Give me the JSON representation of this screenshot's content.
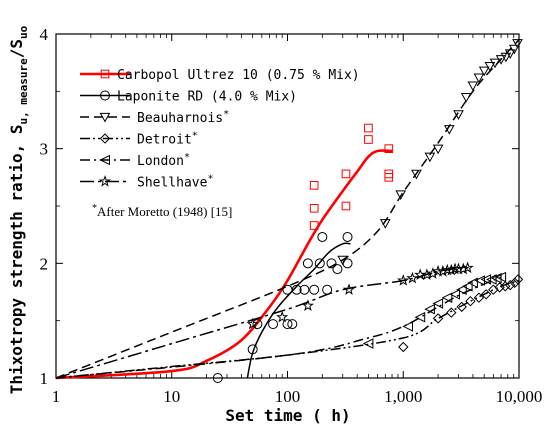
{
  "chart_data": {
    "type": "line",
    "x_scale": "log",
    "xlabel": "Set time ( h)",
    "ylabel_main": "Thixotropy strength ratio, S",
    "ylabel_sub1": "u, measure",
    "ylabel_slash": "/S",
    "ylabel_sub2": "uo",
    "xlim": [
      1,
      10000
    ],
    "ylim": [
      1,
      4
    ],
    "x_ticks": [
      1,
      10,
      100,
      1000,
      10000
    ],
    "x_tick_labels": [
      "1",
      "10",
      "100",
      "1,000",
      "10,000"
    ],
    "y_ticks": [
      1,
      2,
      3,
      4
    ],
    "y_tick_labels": [
      "1",
      "2",
      "3",
      "4"
    ],
    "grid": false,
    "legend_position": "top-left",
    "note": "After Moretto (1948) [15]",
    "note_marker": "*",
    "series": [
      {
        "name": "Carbopol Ultrez 10 (0.75 % Mix)",
        "color": "#ff0000",
        "line": "solid",
        "marker": "square",
        "curve": [
          [
            1,
            1.0
          ],
          [
            10,
            1.06
          ],
          [
            20,
            1.15
          ],
          [
            40,
            1.33
          ],
          [
            70,
            1.62
          ],
          [
            100,
            1.85
          ],
          [
            150,
            2.17
          ],
          [
            200,
            2.38
          ],
          [
            300,
            2.63
          ],
          [
            400,
            2.8
          ],
          [
            500,
            2.93
          ],
          [
            600,
            2.98
          ],
          [
            800,
            2.98
          ]
        ],
        "points": [
          [
            170,
            2.68
          ],
          [
            170,
            2.48
          ],
          [
            170,
            2.33
          ],
          [
            320,
            2.78
          ],
          [
            320,
            2.5
          ],
          [
            500,
            3.18
          ],
          [
            500,
            3.08
          ],
          [
            750,
            3.0
          ],
          [
            750,
            2.78
          ],
          [
            750,
            2.75
          ]
        ]
      },
      {
        "name": "Laponite RD (4.0 % Mix)",
        "color": "#000000",
        "line": "solid",
        "marker": "circle",
        "curve": [
          [
            45,
            1.0
          ],
          [
            50,
            1.22
          ],
          [
            60,
            1.4
          ],
          [
            80,
            1.6
          ],
          [
            120,
            1.8
          ],
          [
            170,
            1.95
          ],
          [
            230,
            2.1
          ],
          [
            300,
            2.17
          ],
          [
            350,
            2.17
          ]
        ],
        "points": [
          [
            25,
            1.0
          ],
          [
            50,
            1.25
          ],
          [
            55,
            1.47
          ],
          [
            75,
            1.47
          ],
          [
            100,
            1.47
          ],
          [
            100,
            1.77
          ],
          [
            110,
            1.47
          ],
          [
            120,
            1.77
          ],
          [
            140,
            1.77
          ],
          [
            150,
            2.0
          ],
          [
            170,
            1.77
          ],
          [
            190,
            2.0
          ],
          [
            200,
            2.23
          ],
          [
            220,
            1.77
          ],
          [
            240,
            2.0
          ],
          [
            270,
            1.95
          ],
          [
            330,
            2.0
          ],
          [
            330,
            2.23
          ]
        ]
      },
      {
        "name": "Beauharnois",
        "color": "#000000",
        "line": "dashed",
        "marker": "triangle-down",
        "curve": [
          [
            1,
            1.0
          ],
          [
            10,
            1.4
          ],
          [
            100,
            1.8
          ],
          [
            300,
            2.03
          ],
          [
            600,
            2.28
          ],
          [
            1000,
            2.62
          ],
          [
            2000,
            3.05
          ],
          [
            4000,
            3.5
          ],
          [
            7000,
            3.78
          ],
          [
            10000,
            3.95
          ]
        ],
        "points": [
          [
            300,
            2.03
          ],
          [
            700,
            2.35
          ],
          [
            950,
            2.6
          ],
          [
            1300,
            2.78
          ],
          [
            1700,
            2.93
          ],
          [
            2000,
            3.0
          ],
          [
            2500,
            3.17
          ],
          [
            3000,
            3.3
          ],
          [
            3500,
            3.45
          ],
          [
            4000,
            3.55
          ],
          [
            4500,
            3.62
          ],
          [
            5000,
            3.68
          ],
          [
            5600,
            3.72
          ],
          [
            6200,
            3.75
          ],
          [
            7000,
            3.78
          ],
          [
            7700,
            3.8
          ],
          [
            8400,
            3.83
          ],
          [
            9100,
            3.87
          ],
          [
            9700,
            3.92
          ]
        ]
      },
      {
        "name": "Detroit",
        "color": "#000000",
        "line": "dash-dot-dot",
        "marker": "diamond",
        "curve": [
          [
            1,
            1.0
          ],
          [
            10,
            1.1
          ],
          [
            100,
            1.2
          ],
          [
            1000,
            1.35
          ],
          [
            2000,
            1.52
          ],
          [
            4000,
            1.68
          ],
          [
            7000,
            1.8
          ],
          [
            10000,
            1.85
          ]
        ],
        "points": [
          [
            1000,
            1.27
          ],
          [
            2000,
            1.52
          ],
          [
            2600,
            1.57
          ],
          [
            3200,
            1.62
          ],
          [
            3800,
            1.67
          ],
          [
            4500,
            1.7
          ],
          [
            5200,
            1.73
          ],
          [
            6000,
            1.77
          ],
          [
            6800,
            1.79
          ],
          [
            7600,
            1.8
          ],
          [
            8400,
            1.81
          ],
          [
            9200,
            1.83
          ],
          [
            9800,
            1.86
          ]
        ]
      },
      {
        "name": "London",
        "color": "#000000",
        "line": "dash-dot",
        "marker": "triangle-left",
        "curve": [
          [
            1,
            1.0
          ],
          [
            100,
            1.2
          ],
          [
            500,
            1.35
          ],
          [
            1000,
            1.45
          ],
          [
            2000,
            1.62
          ],
          [
            3000,
            1.72
          ],
          [
            5000,
            1.82
          ],
          [
            7000,
            1.88
          ]
        ],
        "points": [
          [
            500,
            1.3
          ],
          [
            1100,
            1.45
          ],
          [
            1400,
            1.53
          ],
          [
            1700,
            1.6
          ],
          [
            2000,
            1.65
          ],
          [
            2400,
            1.7
          ],
          [
            2800,
            1.73
          ],
          [
            3200,
            1.77
          ],
          [
            3600,
            1.8
          ],
          [
            4000,
            1.83
          ],
          [
            4600,
            1.85
          ],
          [
            5200,
            1.86
          ],
          [
            5800,
            1.86
          ],
          [
            6400,
            1.87
          ],
          [
            7000,
            1.88
          ]
        ]
      },
      {
        "name": "Shellhave",
        "color": "#000000",
        "line": "long-dash-dot",
        "marker": "star",
        "curve": [
          [
            1,
            1.0
          ],
          [
            10,
            1.3
          ],
          [
            100,
            1.6
          ],
          [
            300,
            1.77
          ],
          [
            1000,
            1.85
          ],
          [
            2000,
            1.93
          ],
          [
            3500,
            1.97
          ]
        ],
        "points": [
          [
            50,
            1.47
          ],
          [
            90,
            1.53
          ],
          [
            150,
            1.63
          ],
          [
            340,
            1.77
          ],
          [
            1000,
            1.85
          ],
          [
            1200,
            1.87
          ],
          [
            1400,
            1.9
          ],
          [
            1600,
            1.9
          ],
          [
            1800,
            1.91
          ],
          [
            2000,
            1.93
          ],
          [
            2200,
            1.93
          ],
          [
            2400,
            1.94
          ],
          [
            2600,
            1.94
          ],
          [
            2800,
            1.95
          ],
          [
            3000,
            1.95
          ],
          [
            3300,
            1.95
          ],
          [
            3600,
            1.96
          ]
        ]
      }
    ]
  }
}
